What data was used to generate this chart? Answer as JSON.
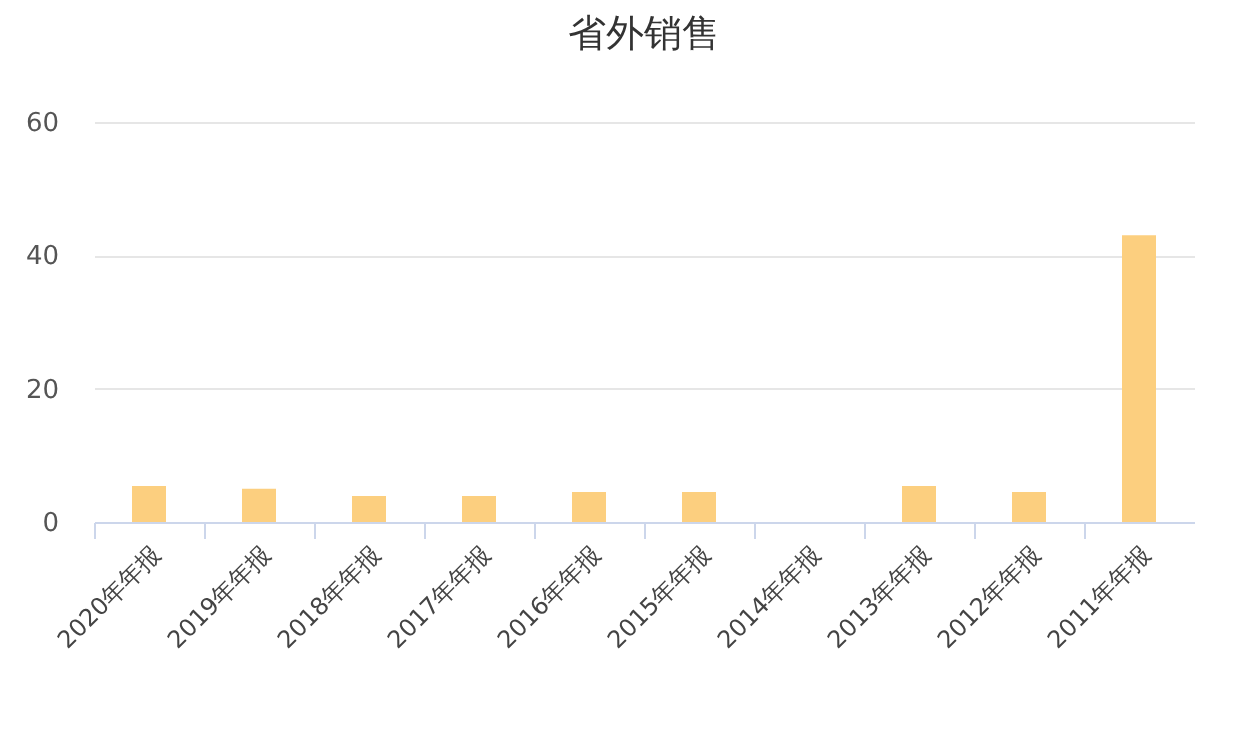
{
  "chart_data": {
    "type": "bar",
    "title": "省外销售",
    "categories": [
      "2020年年报",
      "2019年年报",
      "2018年年报",
      "2017年年报",
      "2016年年报",
      "2015年年报",
      "2014年年报",
      "2013年年报",
      "2012年年报",
      "2011年年报"
    ],
    "values": [
      5.4,
      5,
      3.9,
      3.9,
      4.5,
      4.5,
      0,
      5.4,
      4.5,
      43
    ],
    "color": "#fccf7f",
    "ylim": [
      0,
      60
    ],
    "yticks": [
      0,
      20,
      40,
      60
    ],
    "grid": "y"
  }
}
